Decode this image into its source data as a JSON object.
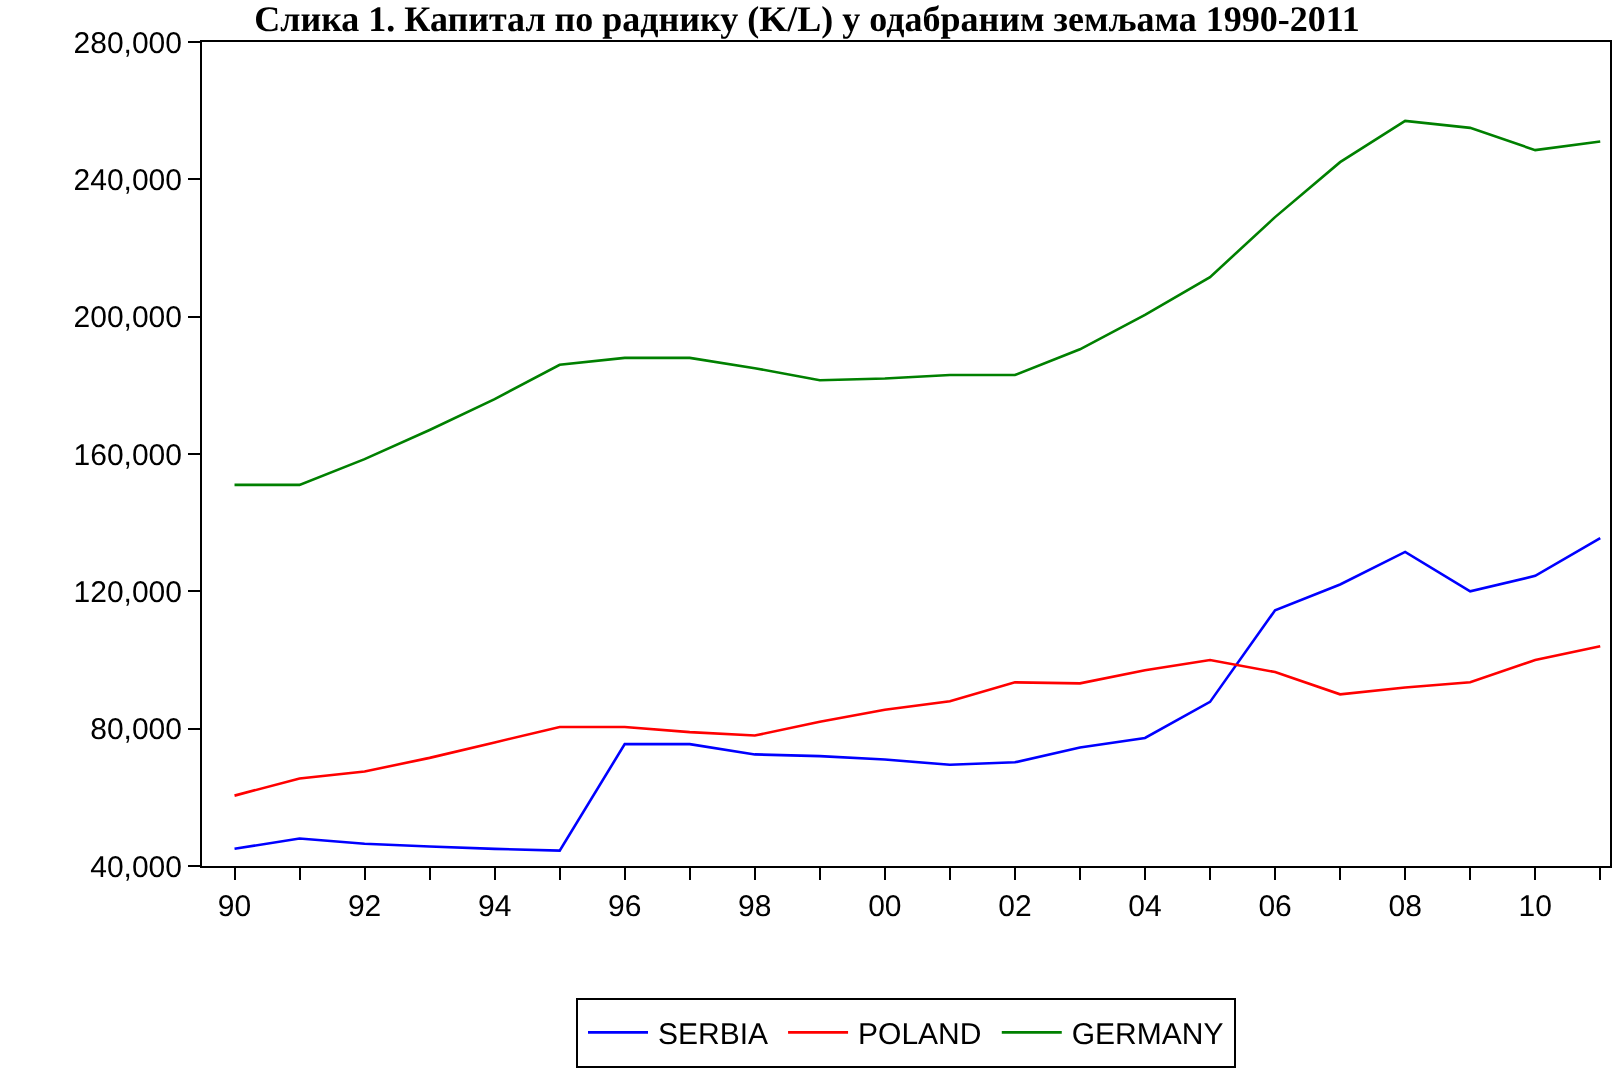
{
  "chart_data": {
    "type": "line",
    "title": "Слика 1. Капитал по раднику (K/L) у одабраним земљама 1990-2011",
    "x": [
      1990,
      1991,
      1992,
      1993,
      1994,
      1995,
      1996,
      1997,
      1998,
      1999,
      2000,
      2001,
      2002,
      2003,
      2004,
      2005,
      2006,
      2007,
      2008,
      2009,
      2010,
      2011
    ],
    "series": [
      {
        "name": "SERBIA",
        "color": "#0000ff",
        "values": [
          45000,
          48000,
          46500,
          45700,
          45000,
          44500,
          75500,
          75500,
          72500,
          72000,
          71000,
          69500,
          70200,
          74500,
          77300,
          87800,
          114500,
          122000,
          131500,
          120000,
          124500,
          135500
        ]
      },
      {
        "name": "POLAND",
        "color": "#ff0000",
        "values": [
          60500,
          65500,
          67500,
          71500,
          76000,
          80500,
          80500,
          79000,
          78000,
          82000,
          85500,
          88000,
          93500,
          93200,
          97000,
          100000,
          96500,
          90000,
          92000,
          93500,
          100000,
          104000
        ]
      },
      {
        "name": "GERMANY",
        "color": "#008000",
        "values": [
          151000,
          151000,
          158500,
          167000,
          176000,
          186000,
          188000,
          188000,
          185000,
          181500,
          182000,
          183000,
          183000,
          190500,
          200500,
          211500,
          229000,
          245000,
          257000,
          255000,
          248500,
          251000
        ]
      }
    ],
    "xlim": [
      1989.5,
      2011.15
    ],
    "xticks": [
      {
        "value": 1990,
        "label": "90"
      },
      {
        "value": 1991,
        "label": null
      },
      {
        "value": 1992,
        "label": "92"
      },
      {
        "value": 1993,
        "label": null
      },
      {
        "value": 1994,
        "label": "94"
      },
      {
        "value": 1995,
        "label": null
      },
      {
        "value": 1996,
        "label": "96"
      },
      {
        "value": 1997,
        "label": null
      },
      {
        "value": 1998,
        "label": "98"
      },
      {
        "value": 1999,
        "label": null
      },
      {
        "value": 2000,
        "label": "00"
      },
      {
        "value": 2001,
        "label": null
      },
      {
        "value": 2002,
        "label": "02"
      },
      {
        "value": 2003,
        "label": null
      },
      {
        "value": 2004,
        "label": "04"
      },
      {
        "value": 2005,
        "label": null
      },
      {
        "value": 2006,
        "label": "06"
      },
      {
        "value": 2007,
        "label": null
      },
      {
        "value": 2008,
        "label": "08"
      },
      {
        "value": 2009,
        "label": null
      },
      {
        "value": 2010,
        "label": "10"
      },
      {
        "value": 2011,
        "label": null
      }
    ],
    "ylim": [
      40000,
      280000
    ],
    "yticks": [
      {
        "value": 40000,
        "label": "40,000"
      },
      {
        "value": 80000,
        "label": "80,000"
      },
      {
        "value": 120000,
        "label": "120,000"
      },
      {
        "value": 160000,
        "label": "160,000"
      },
      {
        "value": 200000,
        "label": "200,000"
      },
      {
        "value": 240000,
        "label": "240,000"
      },
      {
        "value": 280000,
        "label": "280,000"
      }
    ],
    "grid": false,
    "legend": "bottom",
    "marker": "none",
    "line_style": "solid"
  }
}
